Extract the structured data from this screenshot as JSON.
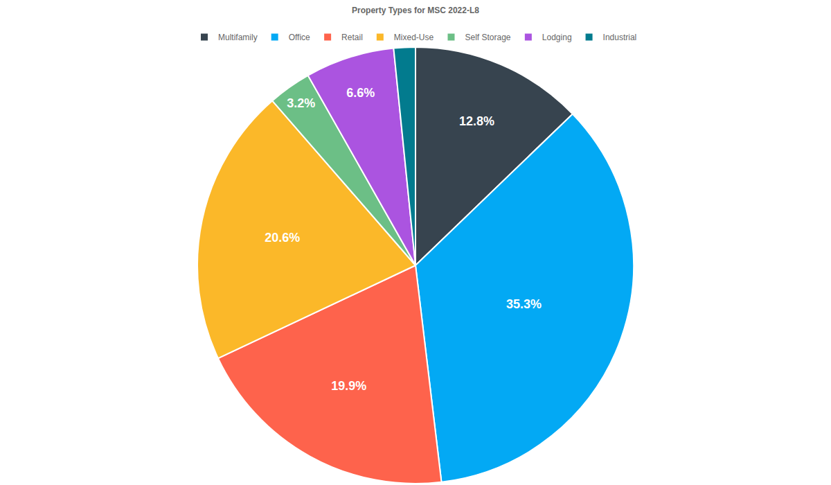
{
  "chart_data": {
    "type": "pie",
    "title": "Property Types for MSC 2022-L8",
    "categories": [
      "Multifamily",
      "Office",
      "Retail",
      "Mixed-Use",
      "Self Storage",
      "Lodging",
      "Industrial"
    ],
    "values": [
      12.8,
      35.3,
      19.9,
      20.6,
      3.2,
      6.6,
      1.6
    ],
    "value_labels": [
      "12.8%",
      "35.3%",
      "19.9%",
      "20.6%",
      "3.2%",
      "6.6%",
      null
    ],
    "colors": [
      "#37444f",
      "#03a9f4",
      "#fe634c",
      "#fbb829",
      "#6cbf86",
      "#ab54e0",
      "#027b8e"
    ],
    "data_labels": true,
    "legend": "top"
  }
}
